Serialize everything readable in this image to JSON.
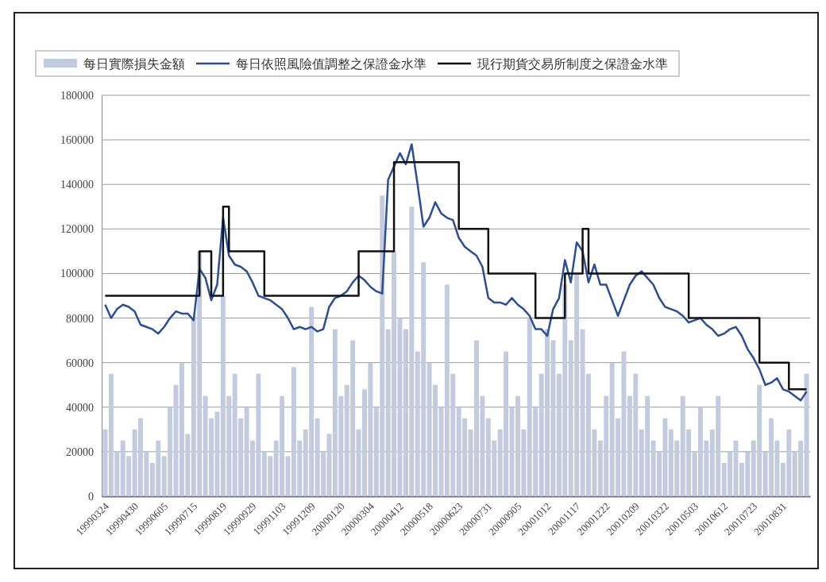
{
  "chart_data": {
    "type": "bar",
    "categories": [
      "19990324",
      null,
      null,
      null,
      null,
      "19990430",
      null,
      null,
      null,
      null,
      "19990605",
      null,
      null,
      null,
      null,
      "19990715",
      null,
      null,
      null,
      null,
      "19990819",
      null,
      null,
      null,
      null,
      "19990929",
      null,
      null,
      null,
      null,
      "19991103",
      null,
      null,
      null,
      null,
      "19991209",
      null,
      null,
      null,
      null,
      "20000120",
      null,
      null,
      null,
      null,
      "20000304",
      null,
      null,
      null,
      null,
      "20000412",
      null,
      null,
      null,
      null,
      "20000518",
      null,
      null,
      null,
      null,
      "20000623",
      null,
      null,
      null,
      null,
      "20000731",
      null,
      null,
      null,
      null,
      "20000905",
      null,
      null,
      null,
      null,
      "20001012",
      null,
      null,
      null,
      null,
      "20001117",
      null,
      null,
      null,
      null,
      "20001222",
      null,
      null,
      null,
      null,
      "20010209",
      null,
      null,
      null,
      null,
      "20010322",
      null,
      null,
      null,
      null,
      "20010503",
      null,
      null,
      null,
      null,
      "20010612",
      null,
      null,
      null,
      null,
      "20010723",
      null,
      null,
      null,
      null,
      "20010831",
      null,
      null,
      null,
      null
    ],
    "series": [
      {
        "name": "每日實際損失金額",
        "color": "#c3cbe0",
        "values": [
          30000,
          55000,
          20000,
          25000,
          18000,
          30000,
          35000,
          20000,
          15000,
          25000,
          18000,
          40000,
          50000,
          60000,
          28000,
          80000,
          110000,
          45000,
          35000,
          38000,
          90000,
          45000,
          55000,
          35000,
          40000,
          25000,
          55000,
          20000,
          18000,
          25000,
          45000,
          18000,
          58000,
          25000,
          30000,
          85000,
          35000,
          20000,
          28000,
          75000,
          45000,
          50000,
          70000,
          30000,
          48000,
          60000,
          40000,
          135000,
          75000,
          110000,
          80000,
          75000,
          130000,
          65000,
          105000,
          60000,
          50000,
          40000,
          95000,
          55000,
          40000,
          35000,
          30000,
          70000,
          45000,
          35000,
          25000,
          30000,
          65000,
          40000,
          45000,
          30000,
          80000,
          40000,
          55000,
          75000,
          70000,
          55000,
          95000,
          70000,
          100000,
          75000,
          55000,
          30000,
          25000,
          45000,
          60000,
          35000,
          65000,
          45000,
          55000,
          30000,
          45000,
          25000,
          20000,
          35000,
          30000,
          25000,
          45000,
          30000,
          20000,
          40000,
          25000,
          30000,
          45000,
          15000,
          20000,
          25000,
          15000,
          20000,
          25000,
          50000,
          20000,
          35000,
          25000,
          15000,
          30000,
          20000,
          25000,
          55000
        ]
      },
      {
        "name": "每日依照風險值調整之保證金水準",
        "type": "line",
        "color": "#2a4f9a",
        "values": [
          86000,
          80000,
          84000,
          86000,
          85000,
          83000,
          77000,
          76000,
          75000,
          73000,
          76000,
          80000,
          83000,
          82000,
          82000,
          79000,
          102000,
          98000,
          88000,
          95000,
          125000,
          108000,
          104000,
          103000,
          101000,
          96000,
          90000,
          89000,
          88000,
          86000,
          84000,
          80000,
          75000,
          76000,
          75000,
          76000,
          74000,
          75000,
          85000,
          89000,
          90000,
          92000,
          96000,
          99000,
          97000,
          94000,
          92000,
          91000,
          142000,
          148000,
          154000,
          149000,
          158000,
          140000,
          121000,
          125000,
          132000,
          127000,
          125000,
          124000,
          116000,
          112000,
          110000,
          108000,
          103000,
          89000,
          87000,
          87000,
          86000,
          89000,
          86000,
          84000,
          81000,
          75000,
          75000,
          72000,
          84000,
          89000,
          106000,
          96000,
          114000,
          110000,
          96000,
          104000,
          95000,
          95000,
          88000,
          81000,
          88000,
          95000,
          99000,
          101000,
          98000,
          95000,
          89000,
          85000,
          84000,
          83000,
          81000,
          78000,
          79000,
          80000,
          77000,
          75000,
          72000,
          73000,
          75000,
          76000,
          72000,
          66000,
          62000,
          57000,
          50000,
          51000,
          53000,
          48000,
          47000,
          45000,
          43000,
          47000
        ]
      },
      {
        "name": "現行期貨交易所制度之保證金水準",
        "type": "step",
        "color": "#111111",
        "values": [
          90000,
          90000,
          90000,
          90000,
          90000,
          90000,
          90000,
          90000,
          90000,
          90000,
          90000,
          90000,
          90000,
          90000,
          90000,
          90000,
          110000,
          110000,
          90000,
          90000,
          130000,
          110000,
          110000,
          110000,
          110000,
          110000,
          110000,
          90000,
          90000,
          90000,
          90000,
          90000,
          90000,
          90000,
          90000,
          90000,
          90000,
          90000,
          90000,
          90000,
          90000,
          90000,
          90000,
          110000,
          110000,
          110000,
          110000,
          110000,
          110000,
          150000,
          150000,
          150000,
          150000,
          150000,
          150000,
          150000,
          150000,
          150000,
          150000,
          150000,
          120000,
          120000,
          120000,
          120000,
          120000,
          100000,
          100000,
          100000,
          100000,
          100000,
          100000,
          100000,
          100000,
          80000,
          80000,
          80000,
          80000,
          80000,
          100000,
          100000,
          100000,
          120000,
          100000,
          100000,
          100000,
          100000,
          100000,
          100000,
          100000,
          100000,
          100000,
          100000,
          100000,
          100000,
          100000,
          100000,
          100000,
          100000,
          100000,
          80000,
          80000,
          80000,
          80000,
          80000,
          80000,
          80000,
          80000,
          80000,
          80000,
          80000,
          80000,
          60000,
          60000,
          60000,
          60000,
          60000,
          48000,
          48000,
          48000,
          48000
        ]
      }
    ],
    "ylim": [
      0,
      180000
    ],
    "yticks": [
      0,
      20000,
      40000,
      60000,
      80000,
      100000,
      120000,
      140000,
      160000,
      180000
    ],
    "grid": "y",
    "legend": "top"
  }
}
